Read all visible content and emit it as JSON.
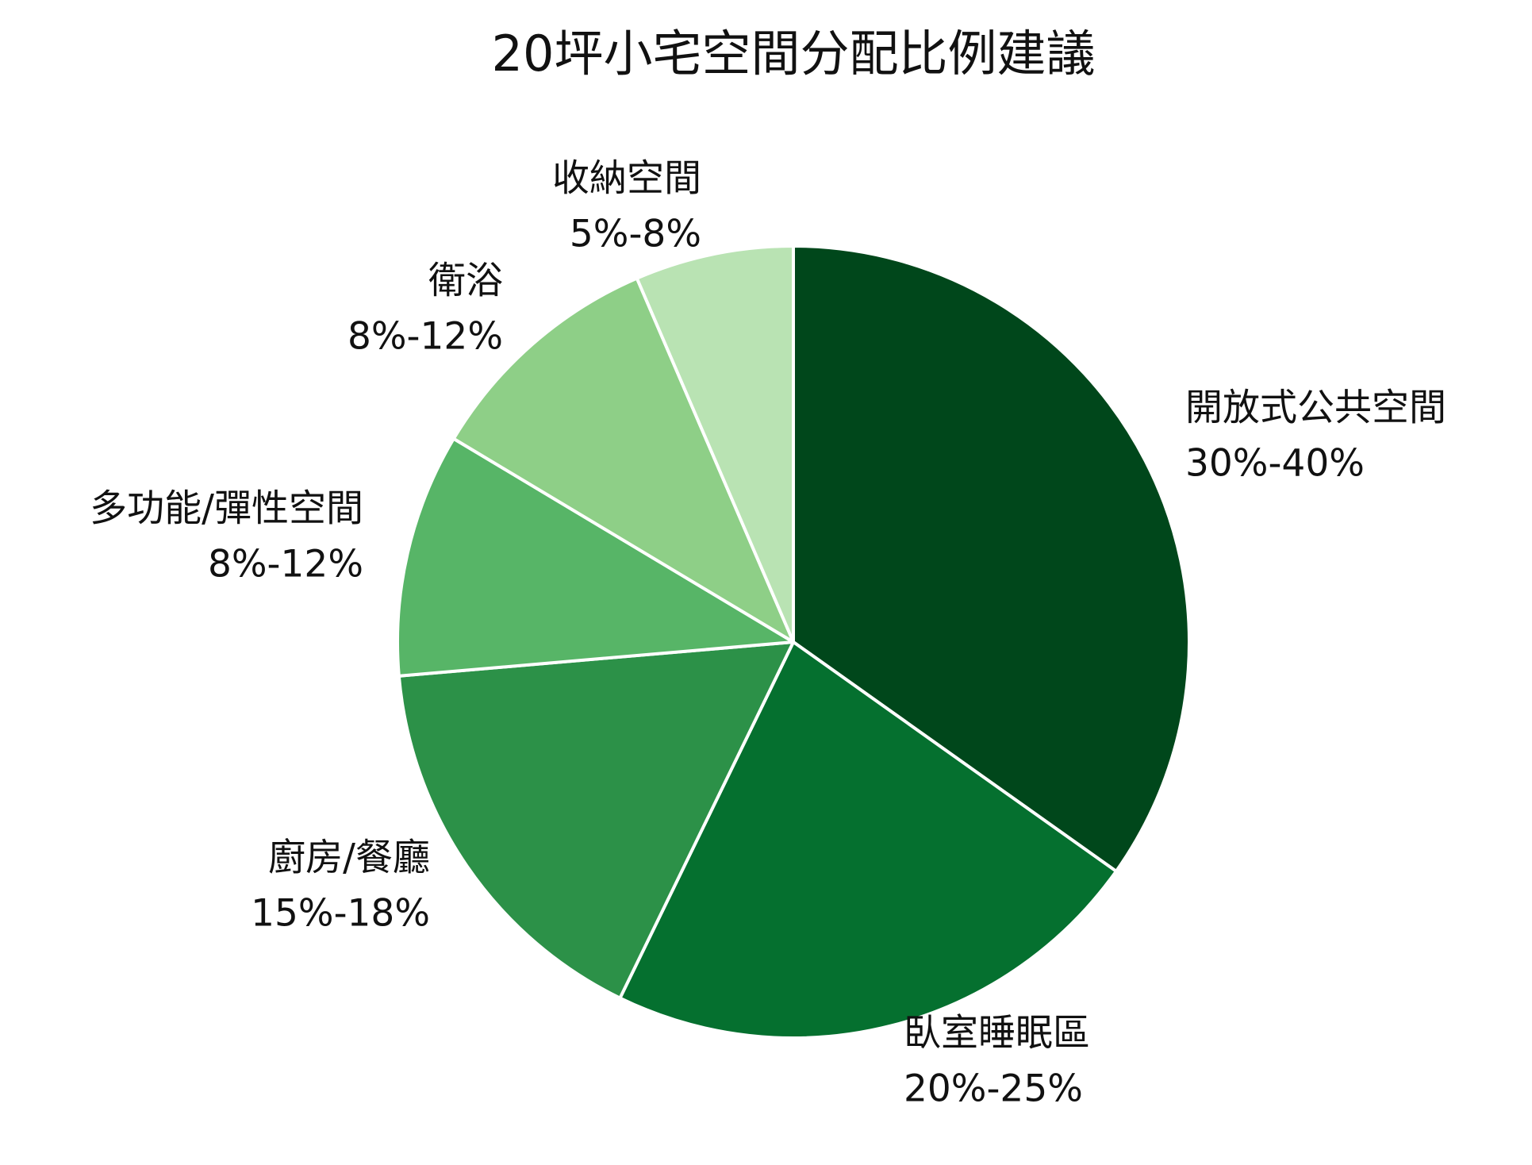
{
  "chart_data": {
    "type": "pie",
    "title": "20坪小宅空間分配比例建議",
    "categories": [
      "開放式公共空間",
      "臥室睡眠區",
      "廚房/餐廳",
      "多功能/彈性空間",
      "衛浴",
      "收納空間"
    ],
    "values": [
      35,
      22.5,
      16.5,
      10,
      10,
      6.5
    ],
    "value_labels": [
      "30%-40%",
      "20%-25%",
      "15%-18%",
      "8%-12%",
      "8%-12%",
      "5%-8%"
    ],
    "colors": [
      "#00471b",
      "#05702f",
      "#2c9148",
      "#57b567",
      "#8ecf87",
      "#b9e3b3"
    ]
  }
}
